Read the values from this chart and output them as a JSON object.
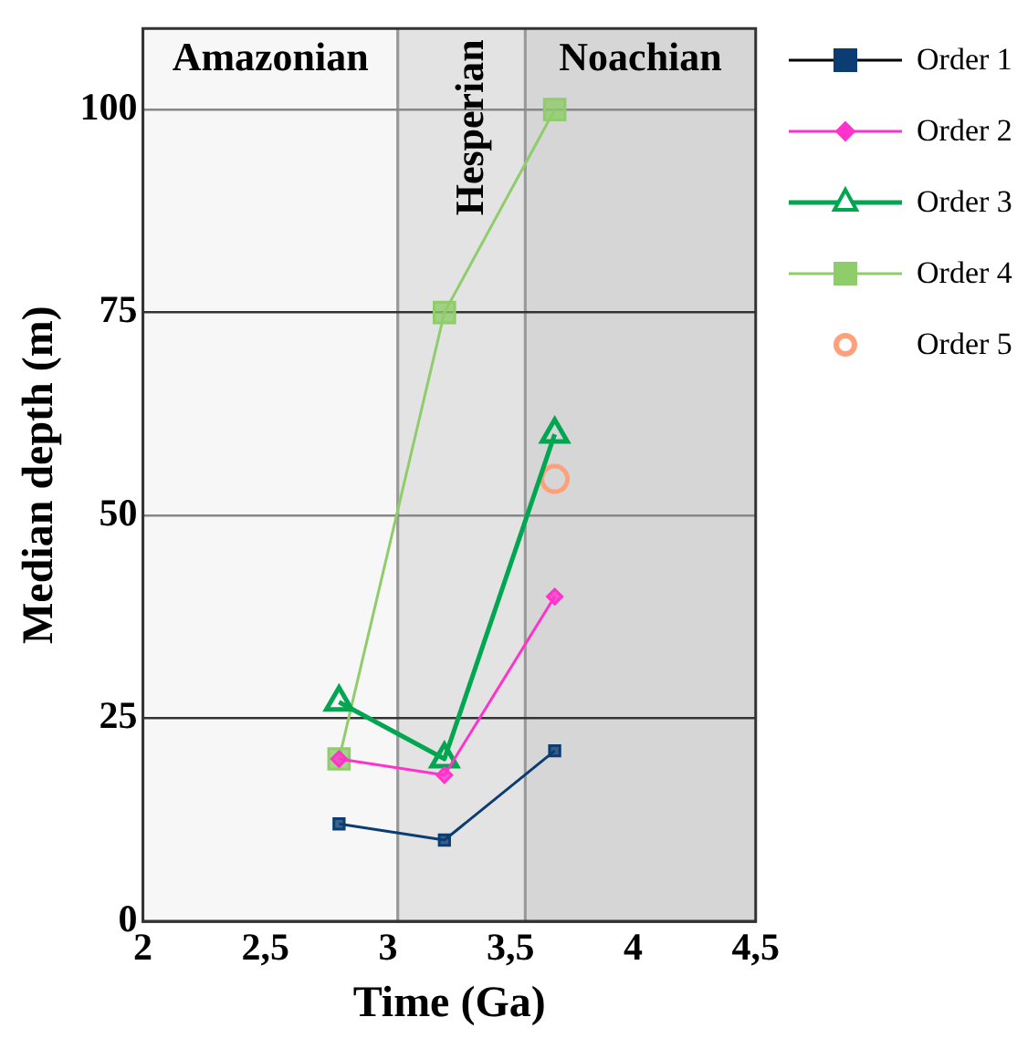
{
  "chart_data": {
    "type": "line",
    "xlabel": "Time (Ga)",
    "ylabel": "Median depth (m)",
    "xlim": [
      2,
      4.5
    ],
    "xticks": [
      2,
      {
        "value": 2.5,
        "label": "2,5"
      },
      3,
      {
        "value": 3.5,
        "label": "3,5"
      },
      4,
      {
        "value": 4.5,
        "label": "4,5"
      }
    ],
    "ylim": [
      0,
      110
    ],
    "yticks": [
      0,
      25,
      50,
      75,
      100
    ],
    "grid": "y",
    "legend": "right",
    "bands": [
      {
        "axis": "x",
        "from": 2,
        "to": 3.04,
        "label": "Amazonian",
        "color": "#f7f7f7"
      },
      {
        "axis": "x",
        "from": 3.04,
        "to": 3.56,
        "label": "Hesperian",
        "color": "#e3e3e3"
      },
      {
        "axis": "x",
        "from": 3.56,
        "to": 4.5,
        "label": "Noachian",
        "color": "#d6d6d6"
      }
    ],
    "series": [
      {
        "name": "Order 1",
        "color": "#0b3d73",
        "marker": "square",
        "x": [
          2.8,
          3.23,
          3.68
        ],
        "values": [
          12,
          10,
          21
        ]
      },
      {
        "name": "Order 2",
        "color": "#ff33cc",
        "marker": "diamond",
        "x": [
          2.8,
          3.23,
          3.68
        ],
        "values": [
          20,
          18,
          40
        ]
      },
      {
        "name": "Order 3",
        "color": "#00a650",
        "marker": "triangle",
        "x": [
          2.8,
          3.23,
          3.68
        ],
        "values": [
          27,
          20,
          60
        ]
      },
      {
        "name": "Order 4",
        "color": "#8fcc6a",
        "marker": "square",
        "x": [
          2.8,
          3.23,
          3.68
        ],
        "values": [
          20,
          75,
          100
        ]
      },
      {
        "name": "Order 5",
        "type": "scatter",
        "color": "#ffa07a",
        "marker": "circle",
        "x": [
          3.68
        ],
        "values": [
          54.5
        ]
      }
    ]
  }
}
